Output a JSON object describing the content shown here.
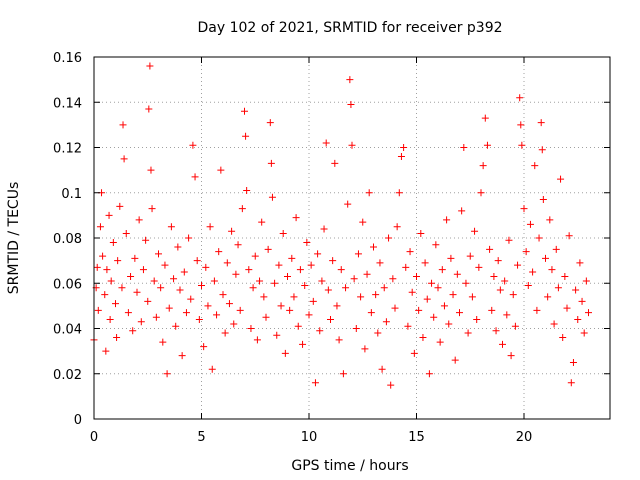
{
  "chart_data": {
    "type": "scatter",
    "title": "Day 102 of 2021, SRMTID for receiver p392",
    "xlabel": "GPS time / hours",
    "ylabel": "SRMTID / TECUs",
    "xlim": [
      0,
      24
    ],
    "ylim": [
      0,
      0.16
    ],
    "x_ticks": [
      0,
      5,
      10,
      15,
      20
    ],
    "x_tick_labels": [
      "0",
      "5",
      "10",
      "15",
      "20"
    ],
    "y_ticks": [
      0,
      0.02,
      0.04,
      0.06,
      0.08,
      0.1,
      0.12,
      0.14,
      0.16
    ],
    "y_tick_labels": [
      "0",
      "0.02",
      "0.04",
      "0.06",
      "0.08",
      "0.1",
      "0.12",
      "0.14",
      "0.16"
    ],
    "grid": true,
    "marker": "plus",
    "color": "#ff0000",
    "series": [
      {
        "name": "SRMTID",
        "points": [
          [
            0.0,
            0.035
          ],
          [
            0.1,
            0.058
          ],
          [
            0.15,
            0.067
          ],
          [
            0.2,
            0.048
          ],
          [
            0.3,
            0.085
          ],
          [
            0.35,
            0.1
          ],
          [
            0.4,
            0.072
          ],
          [
            0.5,
            0.055
          ],
          [
            0.55,
            0.03
          ],
          [
            0.6,
            0.066
          ],
          [
            0.7,
            0.09
          ],
          [
            0.75,
            0.044
          ],
          [
            0.8,
            0.061
          ],
          [
            0.9,
            0.078
          ],
          [
            1.0,
            0.051
          ],
          [
            1.05,
            0.036
          ],
          [
            1.1,
            0.07
          ],
          [
            1.2,
            0.094
          ],
          [
            1.3,
            0.058
          ],
          [
            1.35,
            0.13
          ],
          [
            1.4,
            0.115
          ],
          [
            1.5,
            0.082
          ],
          [
            1.6,
            0.047
          ],
          [
            1.7,
            0.063
          ],
          [
            1.8,
            0.039
          ],
          [
            1.9,
            0.071
          ],
          [
            2.0,
            0.056
          ],
          [
            2.1,
            0.088
          ],
          [
            2.2,
            0.043
          ],
          [
            2.3,
            0.066
          ],
          [
            2.4,
            0.079
          ],
          [
            2.5,
            0.052
          ],
          [
            2.55,
            0.137
          ],
          [
            2.6,
            0.156
          ],
          [
            2.65,
            0.11
          ],
          [
            2.7,
            0.093
          ],
          [
            2.8,
            0.061
          ],
          [
            2.9,
            0.045
          ],
          [
            3.0,
            0.073
          ],
          [
            3.1,
            0.058
          ],
          [
            3.2,
            0.034
          ],
          [
            3.3,
            0.068
          ],
          [
            3.4,
            0.02
          ],
          [
            3.5,
            0.049
          ],
          [
            3.6,
            0.085
          ],
          [
            3.7,
            0.062
          ],
          [
            3.8,
            0.041
          ],
          [
            3.9,
            0.076
          ],
          [
            4.0,
            0.057
          ],
          [
            4.1,
            0.028
          ],
          [
            4.2,
            0.065
          ],
          [
            4.3,
            0.047
          ],
          [
            4.4,
            0.08
          ],
          [
            4.5,
            0.053
          ],
          [
            4.6,
            0.121
          ],
          [
            4.7,
            0.107
          ],
          [
            4.8,
            0.07
          ],
          [
            4.9,
            0.044
          ],
          [
            5.0,
            0.059
          ],
          [
            5.1,
            0.032
          ],
          [
            5.2,
            0.067
          ],
          [
            5.3,
            0.05
          ],
          [
            5.4,
            0.085
          ],
          [
            5.5,
            0.022
          ],
          [
            5.6,
            0.061
          ],
          [
            5.7,
            0.046
          ],
          [
            5.8,
            0.074
          ],
          [
            5.9,
            0.11
          ],
          [
            6.0,
            0.055
          ],
          [
            6.1,
            0.038
          ],
          [
            6.2,
            0.069
          ],
          [
            6.3,
            0.051
          ],
          [
            6.4,
            0.083
          ],
          [
            6.5,
            0.042
          ],
          [
            6.6,
            0.064
          ],
          [
            6.7,
            0.077
          ],
          [
            6.8,
            0.048
          ],
          [
            6.9,
            0.093
          ],
          [
            7.0,
            0.136
          ],
          [
            7.05,
            0.125
          ],
          [
            7.1,
            0.101
          ],
          [
            7.2,
            0.066
          ],
          [
            7.3,
            0.04
          ],
          [
            7.4,
            0.058
          ],
          [
            7.5,
            0.072
          ],
          [
            7.6,
            0.035
          ],
          [
            7.7,
            0.061
          ],
          [
            7.8,
            0.087
          ],
          [
            7.9,
            0.054
          ],
          [
            8.0,
            0.045
          ],
          [
            8.1,
            0.075
          ],
          [
            8.2,
            0.131
          ],
          [
            8.25,
            0.113
          ],
          [
            8.3,
            0.098
          ],
          [
            8.4,
            0.06
          ],
          [
            8.5,
            0.037
          ],
          [
            8.6,
            0.068
          ],
          [
            8.7,
            0.05
          ],
          [
            8.8,
            0.082
          ],
          [
            8.9,
            0.029
          ],
          [
            9.0,
            0.063
          ],
          [
            9.1,
            0.048
          ],
          [
            9.2,
            0.071
          ],
          [
            9.3,
            0.054
          ],
          [
            9.4,
            0.089
          ],
          [
            9.5,
            0.041
          ],
          [
            9.6,
            0.066
          ],
          [
            9.7,
            0.033
          ],
          [
            9.8,
            0.059
          ],
          [
            9.9,
            0.078
          ],
          [
            10.0,
            0.046
          ],
          [
            10.1,
            0.068
          ],
          [
            10.2,
            0.052
          ],
          [
            10.3,
            0.016
          ],
          [
            10.4,
            0.073
          ],
          [
            10.5,
            0.039
          ],
          [
            10.6,
            0.061
          ],
          [
            10.7,
            0.084
          ],
          [
            10.8,
            0.122
          ],
          [
            10.9,
            0.057
          ],
          [
            11.0,
            0.044
          ],
          [
            11.1,
            0.07
          ],
          [
            11.2,
            0.113
          ],
          [
            11.3,
            0.05
          ],
          [
            11.4,
            0.035
          ],
          [
            11.5,
            0.066
          ],
          [
            11.6,
            0.02
          ],
          [
            11.7,
            0.058
          ],
          [
            11.8,
            0.095
          ],
          [
            11.9,
            0.15
          ],
          [
            11.95,
            0.139
          ],
          [
            12.0,
            0.121
          ],
          [
            12.1,
            0.062
          ],
          [
            12.2,
            0.04
          ],
          [
            12.3,
            0.073
          ],
          [
            12.4,
            0.054
          ],
          [
            12.5,
            0.087
          ],
          [
            12.6,
            0.031
          ],
          [
            12.7,
            0.064
          ],
          [
            12.8,
            0.1
          ],
          [
            12.9,
            0.047
          ],
          [
            13.0,
            0.076
          ],
          [
            13.1,
            0.055
          ],
          [
            13.2,
            0.038
          ],
          [
            13.3,
            0.069
          ],
          [
            13.4,
            0.022
          ],
          [
            13.5,
            0.058
          ],
          [
            13.6,
            0.043
          ],
          [
            13.7,
            0.08
          ],
          [
            13.8,
            0.015
          ],
          [
            13.9,
            0.062
          ],
          [
            14.0,
            0.049
          ],
          [
            14.1,
            0.085
          ],
          [
            14.2,
            0.1
          ],
          [
            14.3,
            0.116
          ],
          [
            14.4,
            0.12
          ],
          [
            14.5,
            0.067
          ],
          [
            14.6,
            0.041
          ],
          [
            14.7,
            0.074
          ],
          [
            14.8,
            0.056
          ],
          [
            14.9,
            0.029
          ],
          [
            15.0,
            0.063
          ],
          [
            15.1,
            0.048
          ],
          [
            15.2,
            0.082
          ],
          [
            15.3,
            0.036
          ],
          [
            15.4,
            0.069
          ],
          [
            15.5,
            0.053
          ],
          [
            15.6,
            0.02
          ],
          [
            15.7,
            0.06
          ],
          [
            15.8,
            0.045
          ],
          [
            15.9,
            0.077
          ],
          [
            16.0,
            0.058
          ],
          [
            16.1,
            0.034
          ],
          [
            16.2,
            0.066
          ],
          [
            16.3,
            0.05
          ],
          [
            16.4,
            0.088
          ],
          [
            16.5,
            0.042
          ],
          [
            16.6,
            0.071
          ],
          [
            16.7,
            0.055
          ],
          [
            16.8,
            0.026
          ],
          [
            16.9,
            0.064
          ],
          [
            17.0,
            0.047
          ],
          [
            17.1,
            0.092
          ],
          [
            17.2,
            0.12
          ],
          [
            17.3,
            0.06
          ],
          [
            17.4,
            0.038
          ],
          [
            17.5,
            0.072
          ],
          [
            17.6,
            0.054
          ],
          [
            17.7,
            0.083
          ],
          [
            17.8,
            0.044
          ],
          [
            17.9,
            0.067
          ],
          [
            18.0,
            0.1
          ],
          [
            18.1,
            0.112
          ],
          [
            18.2,
            0.133
          ],
          [
            18.3,
            0.121
          ],
          [
            18.4,
            0.075
          ],
          [
            18.5,
            0.048
          ],
          [
            18.6,
            0.063
          ],
          [
            18.7,
            0.039
          ],
          [
            18.8,
            0.07
          ],
          [
            18.9,
            0.057
          ],
          [
            19.0,
            0.033
          ],
          [
            19.1,
            0.061
          ],
          [
            19.2,
            0.046
          ],
          [
            19.3,
            0.079
          ],
          [
            19.4,
            0.028
          ],
          [
            19.5,
            0.055
          ],
          [
            19.6,
            0.041
          ],
          [
            19.7,
            0.068
          ],
          [
            19.8,
            0.142
          ],
          [
            19.85,
            0.13
          ],
          [
            19.9,
            0.121
          ],
          [
            20.0,
            0.093
          ],
          [
            20.1,
            0.074
          ],
          [
            20.2,
            0.059
          ],
          [
            20.3,
            0.086
          ],
          [
            20.4,
            0.065
          ],
          [
            20.5,
            0.112
          ],
          [
            20.6,
            0.048
          ],
          [
            20.7,
            0.08
          ],
          [
            20.8,
            0.131
          ],
          [
            20.85,
            0.119
          ],
          [
            20.9,
            0.097
          ],
          [
            21.0,
            0.071
          ],
          [
            21.1,
            0.054
          ],
          [
            21.2,
            0.088
          ],
          [
            21.3,
            0.066
          ],
          [
            21.4,
            0.042
          ],
          [
            21.5,
            0.075
          ],
          [
            21.6,
            0.058
          ],
          [
            21.7,
            0.106
          ],
          [
            21.8,
            0.036
          ],
          [
            21.9,
            0.063
          ],
          [
            22.0,
            0.049
          ],
          [
            22.1,
            0.081
          ],
          [
            22.2,
            0.016
          ],
          [
            22.3,
            0.025
          ],
          [
            22.4,
            0.057
          ],
          [
            22.5,
            0.044
          ],
          [
            22.6,
            0.069
          ],
          [
            22.7,
            0.052
          ],
          [
            22.8,
            0.038
          ],
          [
            22.9,
            0.061
          ],
          [
            23.0,
            0.047
          ]
        ]
      }
    ]
  }
}
